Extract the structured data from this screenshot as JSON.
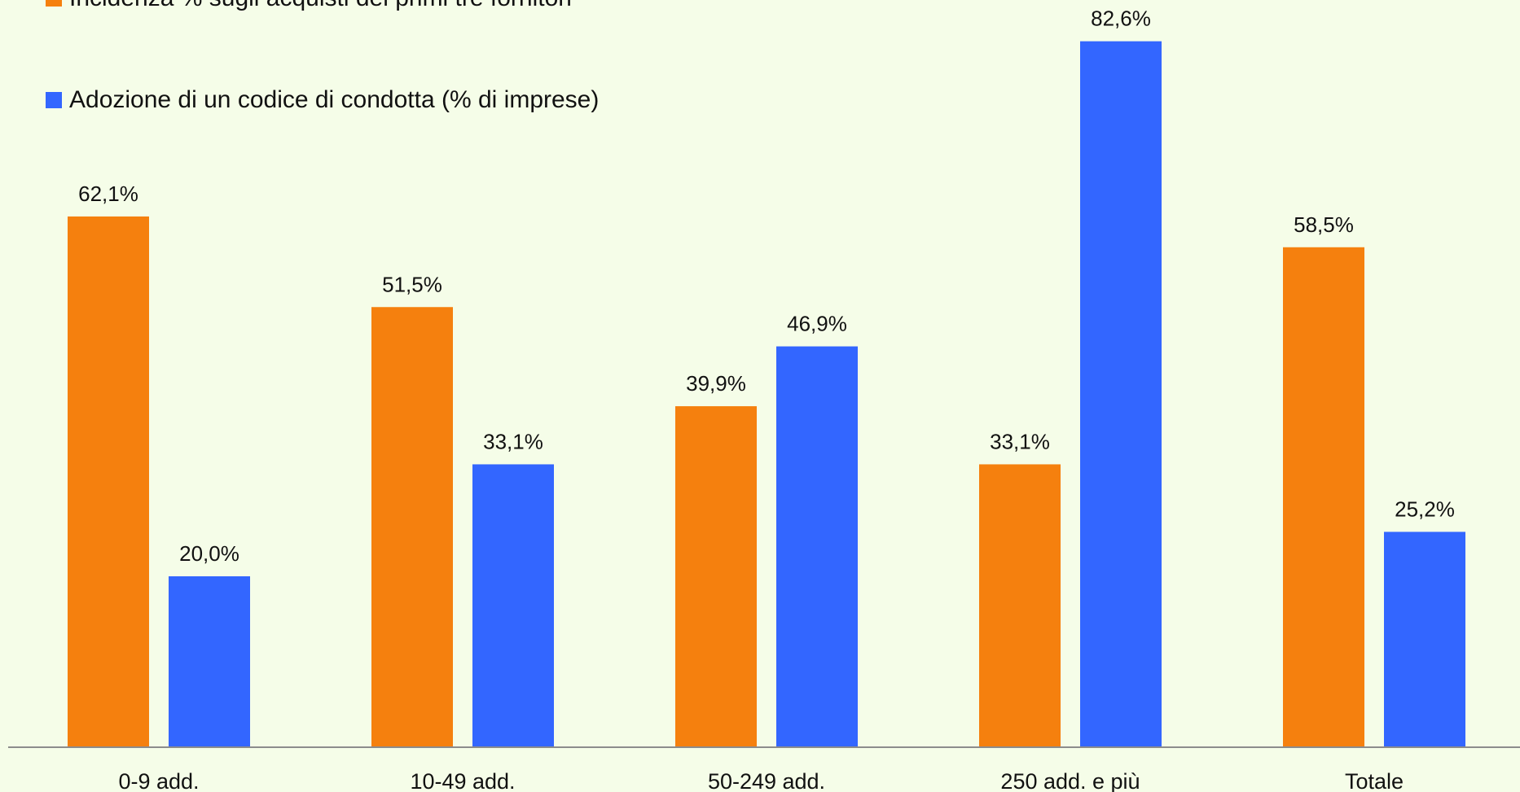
{
  "chart_data": {
    "type": "bar",
    "categories": [
      "0-9 add.",
      "10-49 add.",
      "50-249 add.",
      "250 add. e più",
      "Totale"
    ],
    "series": [
      {
        "name": "Incidenza % sugli acquisti dei primi tre fornitori",
        "color": "#f5800e",
        "values": [
          62.1,
          51.5,
          39.9,
          33.1,
          58.5
        ],
        "labels": [
          "62,1%",
          "51,5%",
          "39,9%",
          "33,1%",
          "58,5%"
        ]
      },
      {
        "name": "Adozione di un codice di condotta (% di imprese)",
        "color": "#3366ff",
        "values": [
          20.0,
          33.1,
          46.9,
          82.6,
          25.2
        ],
        "labels": [
          "20,0%",
          "33,1%",
          "46,9%",
          "82,6%",
          "25,2%"
        ]
      }
    ],
    "ylim": [
      0,
      100
    ],
    "grid": false,
    "legend_position": "top-left"
  }
}
